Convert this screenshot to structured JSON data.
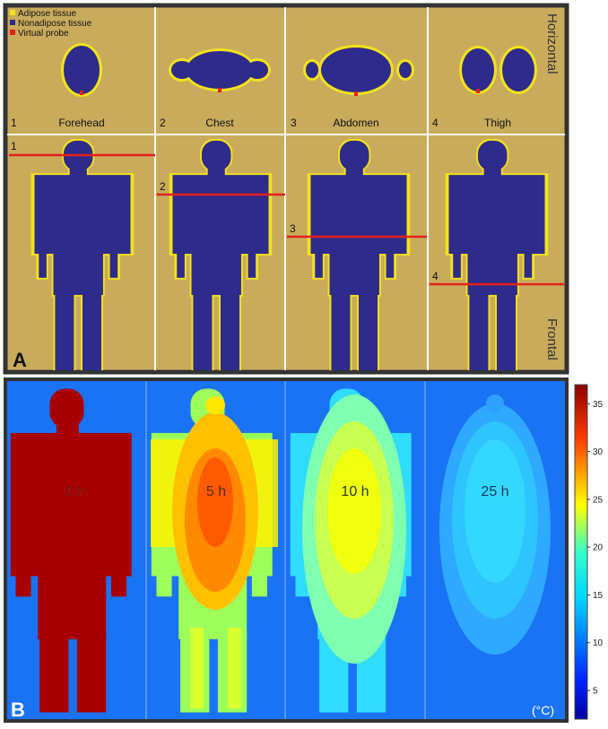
{
  "panel_a": {
    "letter": "A",
    "legend": [
      {
        "label": "Adipose tissue",
        "color": "#f2e21b"
      },
      {
        "label": "Nonadipose tissue",
        "color": "#2e2b8a"
      },
      {
        "label": "Virtual probe",
        "color": "#e3201b"
      }
    ],
    "horizontal_label": "Horizontal",
    "frontal_label": "Frontal",
    "sections": [
      {
        "number": "1",
        "name": "Forehead"
      },
      {
        "number": "2",
        "name": "Chest"
      },
      {
        "number": "3",
        "name": "Abdomen"
      },
      {
        "number": "4",
        "name": "Thigh"
      }
    ],
    "background_color": "#c9ab5c",
    "tissue_color": "#2e2b8a",
    "fat_color": "#f2e21b",
    "probe_color": "#e3201b"
  },
  "panel_b": {
    "letter": "B",
    "times": [
      "0 h",
      "5 h",
      "10 h",
      "25 h"
    ],
    "background_color": "#1a73f5",
    "colorbar": {
      "unit": "(°C)",
      "ticks": [
        "35",
        "30",
        "25",
        "20",
        "15",
        "10",
        "5"
      ],
      "min": 2,
      "max": 37
    }
  }
}
